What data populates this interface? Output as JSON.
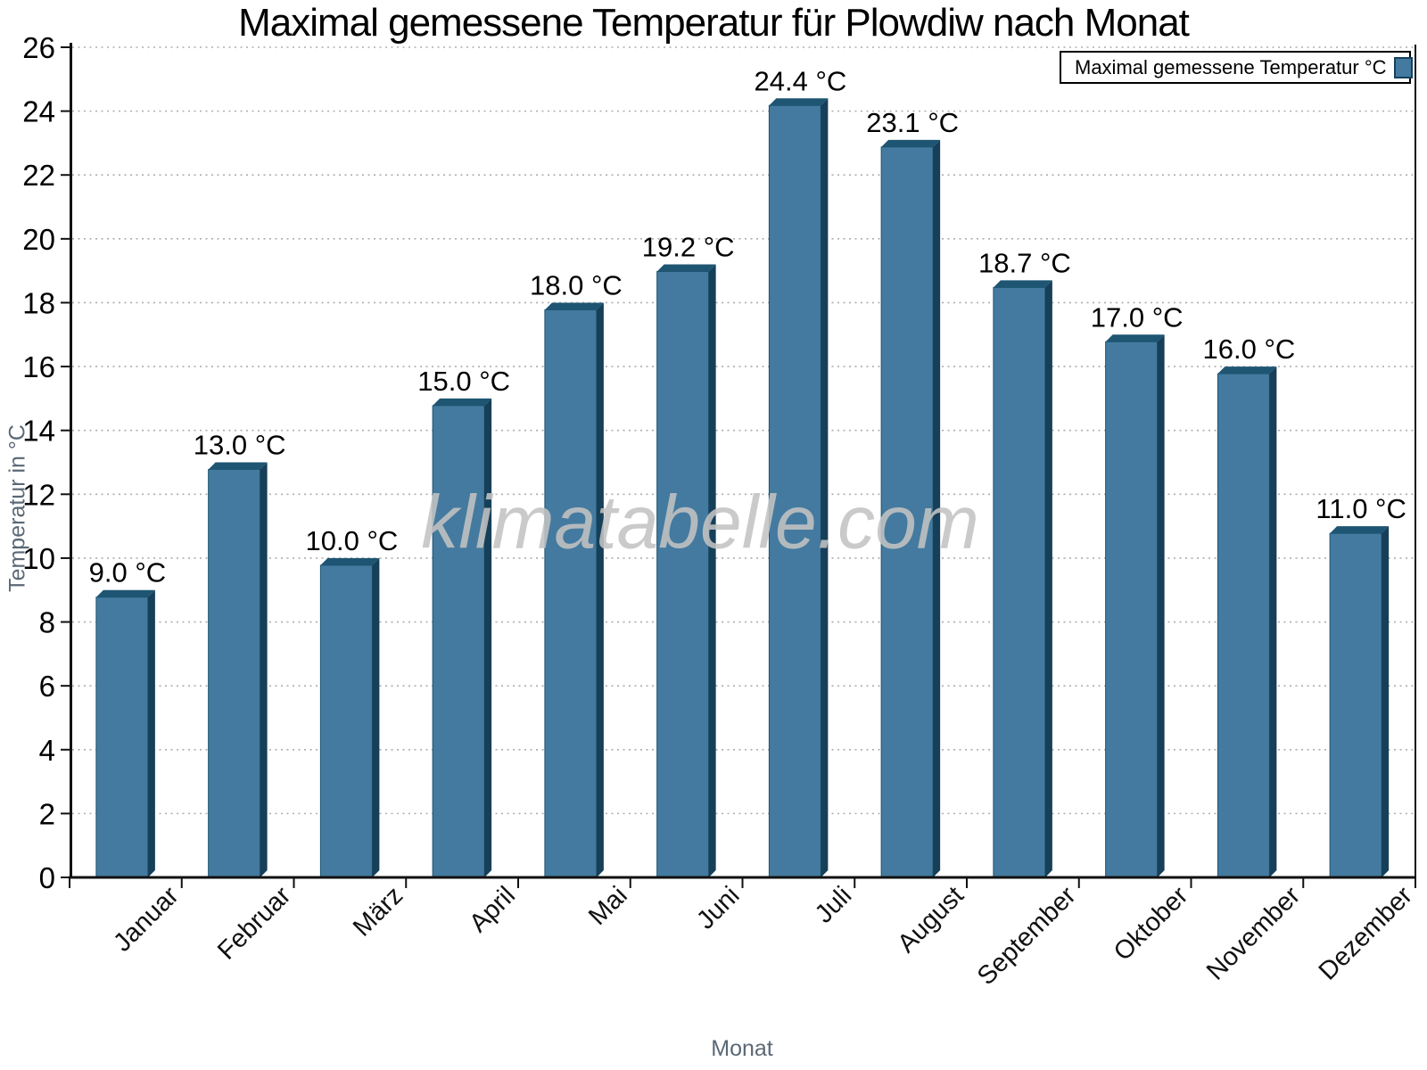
{
  "chart_data": {
    "type": "bar",
    "title": "Maximal gemessene Temperatur für Plowdiw nach Monat",
    "xlabel": "Monat",
    "ylabel": "Temperatur in °C",
    "categories": [
      "Januar",
      "Februar",
      "März",
      "April",
      "Mai",
      "Juni",
      "Juli",
      "August",
      "September",
      "Oktober",
      "November",
      "Dezember"
    ],
    "values": [
      9.0,
      13.0,
      10.0,
      15.0,
      18.0,
      19.2,
      24.4,
      23.1,
      18.7,
      17.0,
      16.0,
      11.0
    ],
    "value_labels": [
      "9.0 °C",
      "13.0 °C",
      "10.0 °C",
      "15.0 °C",
      "18.0 °C",
      "19.2 °C",
      "24.4 °C",
      "23.1 °C",
      "18.7 °C",
      "17.0 °C",
      "16.0 °C",
      "11.0 °C"
    ],
    "ylim": [
      0,
      26
    ],
    "ytick_step": 2,
    "grid": "horizontal-dotted",
    "xtick_label_rotation_deg": -45,
    "legend": {
      "label": "Maximal gemessene Temperatur °C",
      "position": "top-right"
    },
    "watermark": "klimatabelle.com",
    "colors": {
      "bar_front": "#447a9f",
      "bar_top": "#1e5572",
      "bar_side": "#163f59",
      "axis": "#111111",
      "grid": "#adadad",
      "axis_title_gray": "#5a6876",
      "watermark_gray": "#c3c3c3",
      "background": "#ffffff"
    }
  }
}
